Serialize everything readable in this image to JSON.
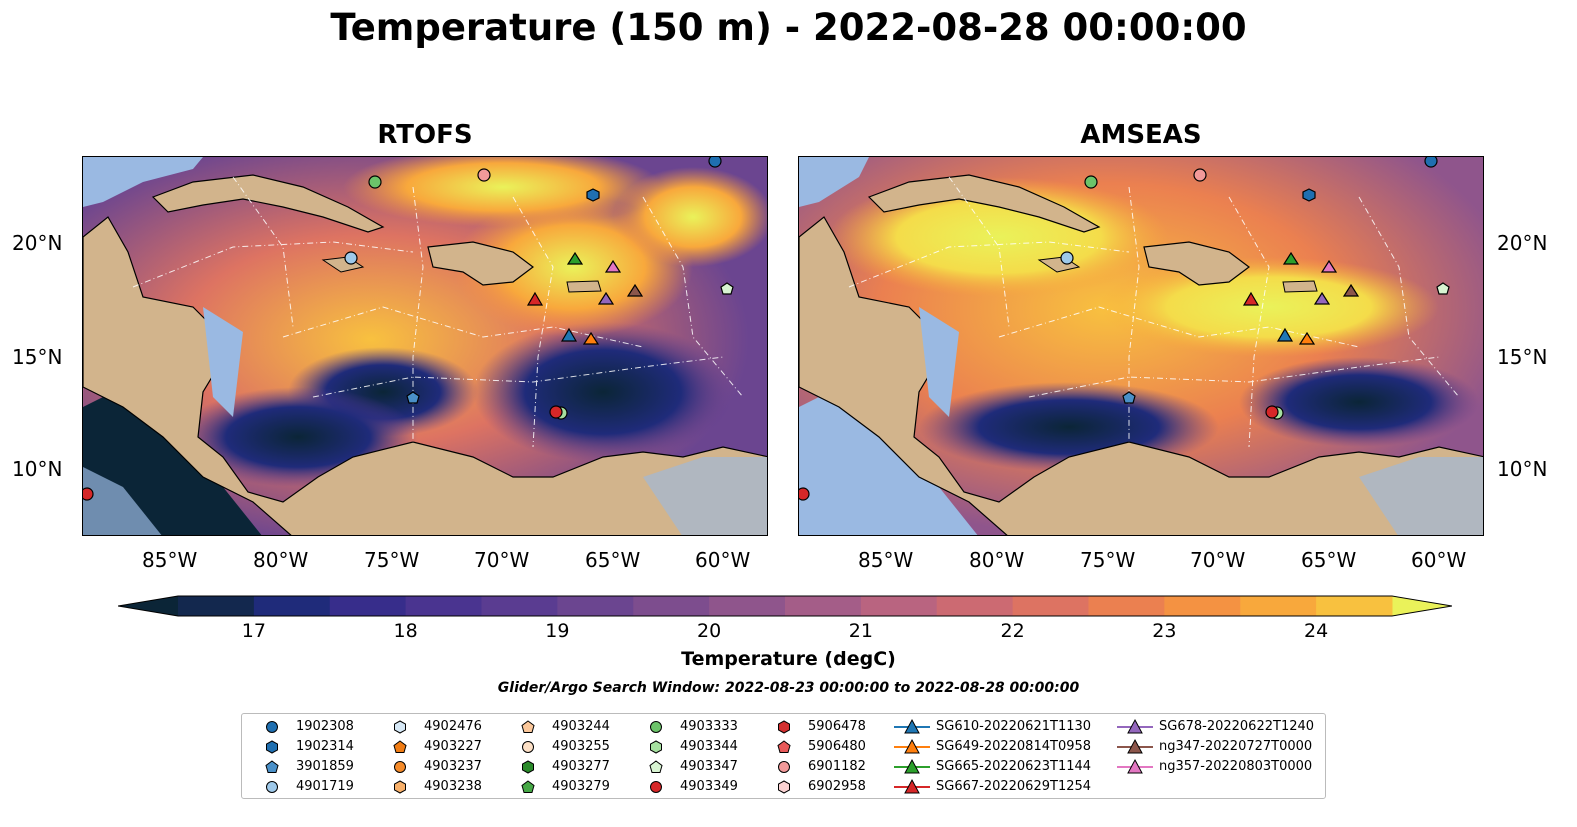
{
  "title": "Temperature (150 m) - 2022-08-28 00:00:00",
  "panels": [
    {
      "name": "RTOFS"
    },
    {
      "name": "AMSEAS"
    }
  ],
  "lat_labels": [
    "20°N",
    "15°N",
    "10°N"
  ],
  "lon_labels": [
    "85°W",
    "80°W",
    "75°W",
    "70°W",
    "65°W",
    "60°W"
  ],
  "colorbar": {
    "label": "Temperature (degC)",
    "ticks": [
      "17",
      "18",
      "19",
      "20",
      "21",
      "22",
      "23",
      "24"
    ],
    "min": 16.5,
    "max": 24.5,
    "step": 0.5,
    "colors": [
      "#0b2537",
      "#13284e",
      "#1f2b7a",
      "#372d8b",
      "#4a3490",
      "#5a3c91",
      "#6b4590",
      "#7d4d8e",
      "#8f558c",
      "#a45d88",
      "#b96480",
      "#cc6a72",
      "#dd7362",
      "#eb8050",
      "#f49242",
      "#f8a83c",
      "#f8c13f",
      "#f4dc4a",
      "#eaf25a"
    ]
  },
  "search_window": "Glider/Argo Search Window: 2022-08-23 00:00:00 to 2022-08-28 00:00:00",
  "legend": [
    {
      "label": "1902308",
      "marker": "circle",
      "color": "#1f6fb0"
    },
    {
      "label": "1902314",
      "marker": "hexagon",
      "color": "#1f6fb0"
    },
    {
      "label": "3901859",
      "marker": "pentagon",
      "color": "#4a90c8"
    },
    {
      "label": "4901719",
      "marker": "circle",
      "color": "#9ec9ea"
    },
    {
      "label": "4902476",
      "marker": "hexagon",
      "color": "#d6e8f6"
    },
    {
      "label": "4903227",
      "marker": "pentagon",
      "color": "#f07c14"
    },
    {
      "label": "4903237",
      "marker": "circle",
      "color": "#f58b2a"
    },
    {
      "label": "4903238",
      "marker": "hexagon",
      "color": "#f8b06a"
    },
    {
      "label": "4903244",
      "marker": "pentagon",
      "color": "#fbc79a"
    },
    {
      "label": "4903255",
      "marker": "circle",
      "color": "#fde0c6"
    },
    {
      "label": "4903277",
      "marker": "hexagon",
      "color": "#2a8a2a"
    },
    {
      "label": "4903279",
      "marker": "pentagon",
      "color": "#46a846"
    },
    {
      "label": "4903333",
      "marker": "circle",
      "color": "#6cc46a"
    },
    {
      "label": "4903344",
      "marker": "hexagon",
      "color": "#a6e0a0"
    },
    {
      "label": "4903347",
      "marker": "pentagon",
      "color": "#d8f4d2"
    },
    {
      "label": "4903349",
      "marker": "circle",
      "color": "#d62728"
    },
    {
      "label": "5906478",
      "marker": "hexagon",
      "color": "#d23030"
    },
    {
      "label": "5906480",
      "marker": "pentagon",
      "color": "#e85a5a"
    },
    {
      "label": "6901182",
      "marker": "circle",
      "color": "#f29a9a"
    },
    {
      "label": "6902958",
      "marker": "hexagon",
      "color": "#fbd3d3"
    },
    {
      "label": "SG610-20220621T1130",
      "marker": "triangle",
      "color": "#1f77b4"
    },
    {
      "label": "SG649-20220814T0958",
      "marker": "triangle",
      "color": "#ff7f0e"
    },
    {
      "label": "SG665-20220623T1144",
      "marker": "triangle",
      "color": "#2ca02c"
    },
    {
      "label": "SG667-20220629T1254",
      "marker": "triangle",
      "color": "#d62728"
    },
    {
      "label": "SG678-20220622T1240",
      "marker": "triangle",
      "color": "#9467bd"
    },
    {
      "label": "ng347-20220727T0000",
      "marker": "triangle",
      "color": "#8c564b"
    },
    {
      "label": "ng357-20220803T0000",
      "marker": "triangle",
      "color": "#e377c2"
    }
  ],
  "colors": {
    "land": "#d2b48c",
    "water": "#9ab9e2"
  }
}
